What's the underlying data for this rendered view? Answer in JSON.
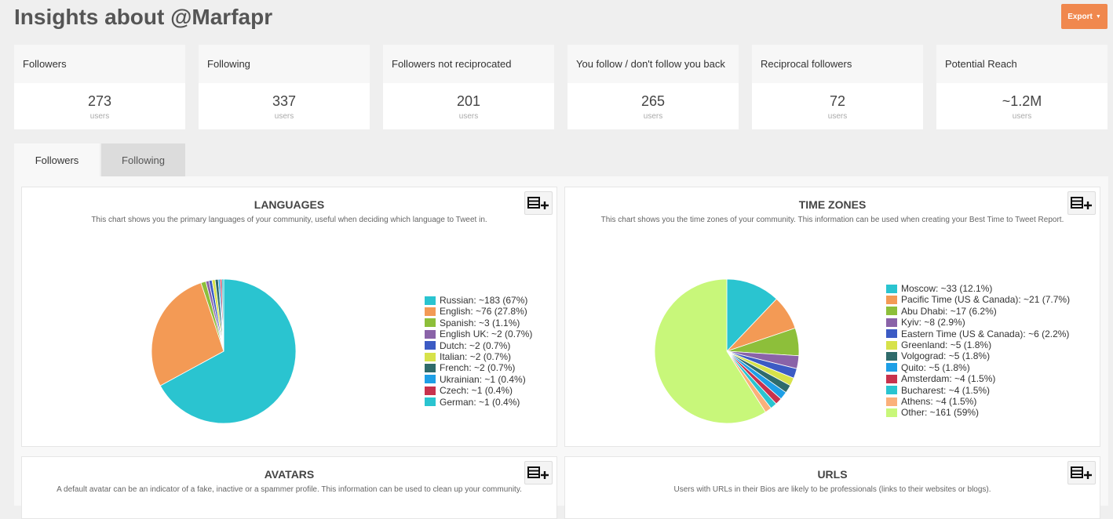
{
  "header": {
    "title": "Insights about @Marfapr",
    "export_label": "Export"
  },
  "stats": [
    {
      "label": "Followers",
      "value": "273",
      "unit": "users"
    },
    {
      "label": "Following",
      "value": "337",
      "unit": "users"
    },
    {
      "label": "Followers not reciprocated",
      "value": "201",
      "unit": "users"
    },
    {
      "label": "You follow / don't follow you back",
      "value": "265",
      "unit": "users"
    },
    {
      "label": "Reciprocal followers",
      "value": "72",
      "unit": "users"
    },
    {
      "label": "Potential Reach",
      "value": "~1.2M",
      "unit": "users"
    }
  ],
  "tabs": [
    {
      "label": "Followers",
      "active": true
    },
    {
      "label": "Following",
      "active": false
    }
  ],
  "panels": {
    "languages": {
      "title": "LANGUAGES",
      "description": "This chart shows you the primary languages of your community, useful when deciding which language to Tweet in."
    },
    "timezones": {
      "title": "TIME ZONES",
      "description": "This chart shows you the time zones of your community. This information can be used when creating your Best Time to Tweet Report."
    },
    "avatars": {
      "title": "AVATARS",
      "description": "A default avatar can be an indicator of a fake, inactive or a spammer profile. This information can be used to clean up your community."
    },
    "urls": {
      "title": "URLS",
      "description": "Users with URLs in their Bios are likely to be professionals (links to their websites or blogs)."
    }
  },
  "chart_data": [
    {
      "type": "pie",
      "title": "LANGUAGES",
      "legend_position": "right",
      "slices": [
        {
          "label": "Russian: ~183 (67%)",
          "value": 67,
          "color": "#2ac4d0"
        },
        {
          "label": "English: ~76 (27.8%)",
          "value": 27.8,
          "color": "#f39a55"
        },
        {
          "label": "Spanish: ~3 (1.1%)",
          "value": 1.1,
          "color": "#8dbf3a"
        },
        {
          "label": "English UK: ~2 (0.7%)",
          "value": 0.7,
          "color": "#8a63a8"
        },
        {
          "label": "Dutch: ~2 (0.7%)",
          "value": 0.7,
          "color": "#3c5bc4"
        },
        {
          "label": "Italian: ~2 (0.7%)",
          "value": 0.7,
          "color": "#d7e24a"
        },
        {
          "label": "French: ~2 (0.7%)",
          "value": 0.7,
          "color": "#2f6b6b"
        },
        {
          "label": "Ukrainian: ~1 (0.4%)",
          "value": 0.4,
          "color": "#1e9fe6"
        },
        {
          "label": "Czech: ~1 (0.4%)",
          "value": 0.4,
          "color": "#c8324d"
        },
        {
          "label": "German: ~1 (0.4%)",
          "value": 0.4,
          "color": "#2ac4d0"
        }
      ]
    },
    {
      "type": "pie",
      "title": "TIME ZONES",
      "legend_position": "right",
      "slices": [
        {
          "label": "Moscow: ~33 (12.1%)",
          "value": 12.1,
          "color": "#2ac4d0"
        },
        {
          "label": "Pacific Time (US & Canada): ~21 (7.7%)",
          "value": 7.7,
          "color": "#f39a55"
        },
        {
          "label": "Abu Dhabi: ~17 (6.2%)",
          "value": 6.2,
          "color": "#8dbf3a"
        },
        {
          "label": "Kyiv: ~8 (2.9%)",
          "value": 2.9,
          "color": "#8a63a8"
        },
        {
          "label": "Eastern Time (US & Canada): ~6 (2.2%)",
          "value": 2.2,
          "color": "#3c5bc4"
        },
        {
          "label": "Greenland: ~5 (1.8%)",
          "value": 1.8,
          "color": "#d7e24a"
        },
        {
          "label": "Volgograd: ~5 (1.8%)",
          "value": 1.8,
          "color": "#2f6b6b"
        },
        {
          "label": "Quito: ~5 (1.8%)",
          "value": 1.8,
          "color": "#1e9fe6"
        },
        {
          "label": "Amsterdam: ~4 (1.5%)",
          "value": 1.5,
          "color": "#c8324d"
        },
        {
          "label": "Bucharest: ~4 (1.5%)",
          "value": 1.5,
          "color": "#2ac4d0"
        },
        {
          "label": "Athens: ~4 (1.5%)",
          "value": 1.5,
          "color": "#fbb07a"
        },
        {
          "label": "Other: ~161 (59%)",
          "value": 59,
          "color": "#c8f77a"
        }
      ]
    }
  ]
}
